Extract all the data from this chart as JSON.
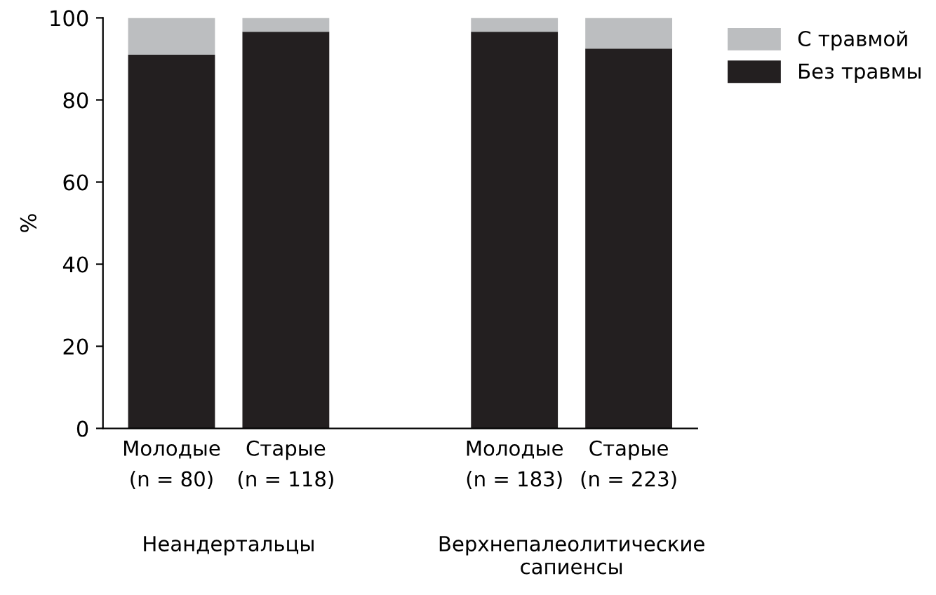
{
  "chart_data": {
    "type": "bar",
    "stacked": true,
    "ylabel": "%",
    "categories": [
      "Молодые\n(n = 80)",
      "Старые\n(n = 118)",
      null,
      "Молодые\n(n = 183)",
      "Старые\n(n = 223)"
    ],
    "series": [
      {
        "name": "Без травмы",
        "color": "#231f20",
        "values": [
          91,
          96.6,
          null,
          96.6,
          92.5
        ]
      },
      {
        "name": "С травмой",
        "color": "#bcbec0",
        "values": [
          9,
          3.4,
          null,
          3.4,
          7.5
        ]
      }
    ],
    "ylim": [
      0,
      100
    ],
    "yticks": [
      0,
      20,
      40,
      60,
      80,
      100
    ],
    "grid": false,
    "legend": "top right",
    "annotations": [
      "Неандертальцы",
      "Верхнепалеолитические\nсапиенсы"
    ]
  }
}
